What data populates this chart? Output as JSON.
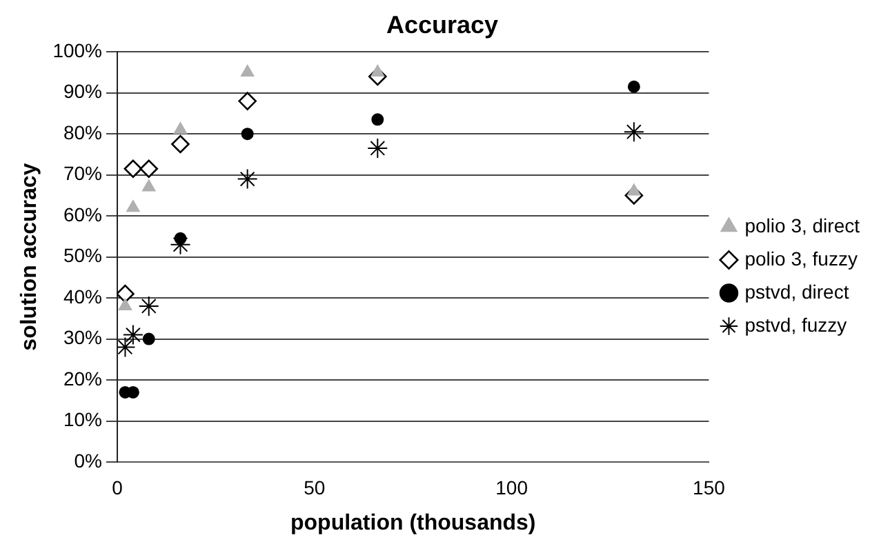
{
  "chart_data": {
    "type": "scatter",
    "title": "Accuracy",
    "xlabel": "population (thousands)",
    "ylabel": "solution accuracy",
    "xlim": [
      0,
      150
    ],
    "xticks": [
      0,
      50,
      100,
      150
    ],
    "ylim": [
      0,
      100
    ],
    "yticks": [
      {
        "value": 0,
        "label": "0%"
      },
      {
        "value": 10,
        "label": "10%"
      },
      {
        "value": 20,
        "label": "20%"
      },
      {
        "value": 30,
        "label": "30%"
      },
      {
        "value": 40,
        "label": "40%"
      },
      {
        "value": 50,
        "label": "50%"
      },
      {
        "value": 60,
        "label": "60%"
      },
      {
        "value": 70,
        "label": "70%"
      },
      {
        "value": 80,
        "label": "80%"
      },
      {
        "value": 90,
        "label": "90%"
      },
      {
        "value": 100,
        "label": "100%"
      }
    ],
    "grid": "y",
    "legend": "right",
    "series": [
      {
        "name": "polio 3, direct",
        "color": "#b0b0b0",
        "marker": "triangle",
        "x": [
          2,
          4,
          8,
          16,
          33,
          66,
          131
        ],
        "values": [
          38,
          62,
          67,
          81,
          95,
          95,
          66
        ]
      },
      {
        "name": "polio 3, fuzzy",
        "color": "#000000",
        "marker": "diamond",
        "x": [
          2,
          4,
          8,
          16,
          33,
          66,
          131
        ],
        "values": [
          41,
          71.5,
          71.5,
          77.5,
          88,
          94,
          65
        ]
      },
      {
        "name": "pstvd, direct",
        "color": "#000000",
        "marker": "circle",
        "x": [
          2,
          4,
          8,
          16,
          33,
          66,
          131
        ],
        "values": [
          17,
          17,
          30,
          54.5,
          80,
          83.5,
          91.5
        ]
      },
      {
        "name": "pstvd, fuzzy",
        "color": "#000000",
        "marker": "cross",
        "x": [
          2,
          4,
          8,
          16,
          33,
          66,
          131
        ],
        "values": [
          28,
          31,
          38,
          53,
          69,
          76.5,
          80.5
        ]
      }
    ]
  }
}
